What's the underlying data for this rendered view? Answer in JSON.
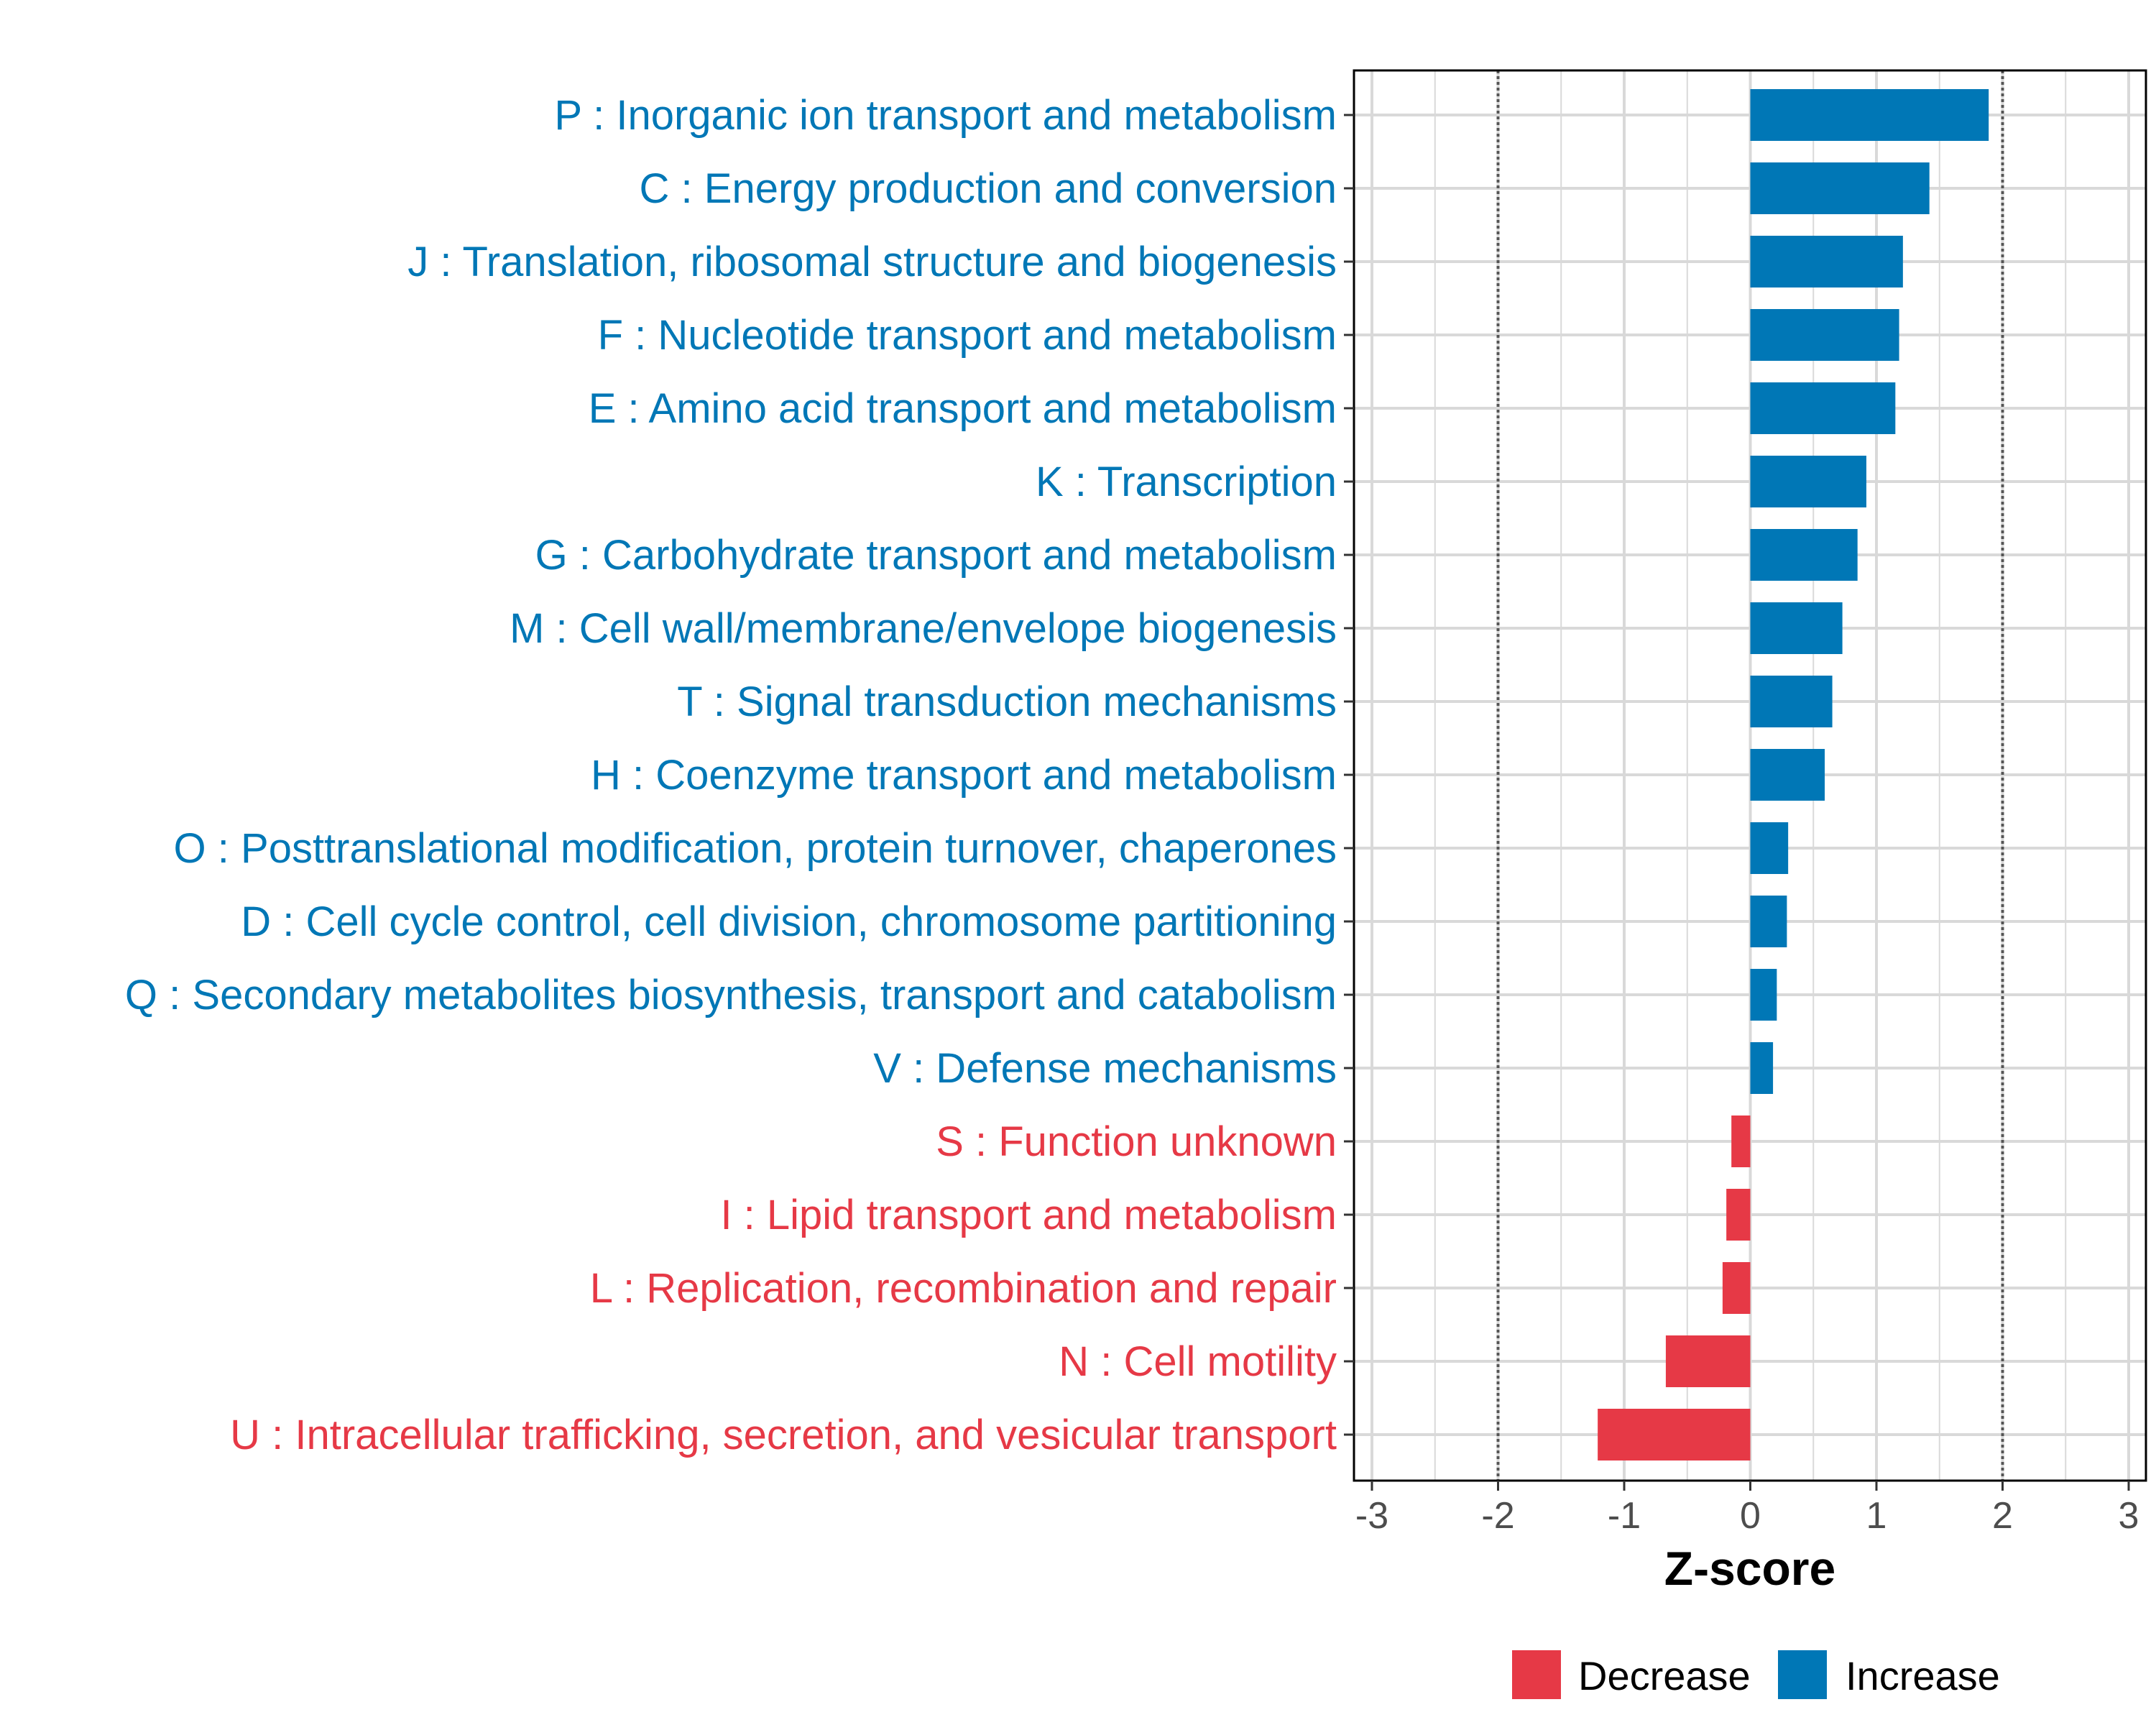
{
  "chart_data": {
    "type": "bar",
    "orientation": "horizontal",
    "title": "",
    "xlabel": "Z-score",
    "ylabel": "",
    "xlim": [
      -3,
      3
    ],
    "xticks": [
      -3,
      -2,
      -1,
      0,
      1,
      2,
      3
    ],
    "xtick_labels": [
      "-3",
      "-2",
      "-1",
      "0",
      "1",
      "2",
      "3"
    ],
    "reference_lines": [
      -2,
      2
    ],
    "grid": true,
    "categories": [
      "P : Inorganic ion transport and metabolism",
      "C : Energy production and conversion",
      "J : Translation, ribosomal structure and biogenesis",
      "F : Nucleotide transport and metabolism",
      "E : Amino acid transport and metabolism",
      "K : Transcription",
      "G : Carbohydrate transport and metabolism",
      "M : Cell wall/membrane/envelope biogenesis",
      "T : Signal transduction mechanisms",
      "H : Coenzyme transport and metabolism",
      "O : Posttranslational modification, protein turnover, chaperones",
      "D : Cell cycle control, cell division, chromosome partitioning",
      "Q : Secondary metabolites biosynthesis, transport and catabolism",
      "V : Defense mechanisms",
      "S : Function unknown",
      "I : Lipid transport and metabolism",
      "L : Replication, recombination and repair",
      "N : Cell motility",
      "U : Intracellular trafficking, secretion, and vesicular transport"
    ],
    "values": [
      1.89,
      1.42,
      1.21,
      1.18,
      1.15,
      0.92,
      0.85,
      0.73,
      0.65,
      0.59,
      0.3,
      0.29,
      0.21,
      0.18,
      -0.15,
      -0.19,
      -0.22,
      -0.67,
      -1.21
    ],
    "groups": [
      "Increase",
      "Increase",
      "Increase",
      "Increase",
      "Increase",
      "Increase",
      "Increase",
      "Increase",
      "Increase",
      "Increase",
      "Increase",
      "Increase",
      "Increase",
      "Increase",
      "Decrease",
      "Decrease",
      "Decrease",
      "Decrease",
      "Decrease"
    ],
    "legend": {
      "position": "bottom",
      "entries": [
        {
          "label": "Decrease",
          "color": "#e63946"
        },
        {
          "label": "Increase",
          "color": "#0077b6"
        }
      ]
    },
    "colors": {
      "Decrease": "#e63946",
      "Increase": "#0077b6",
      "grid": "#d9d9d9",
      "reference": "#555555",
      "frame": "#000000"
    }
  }
}
